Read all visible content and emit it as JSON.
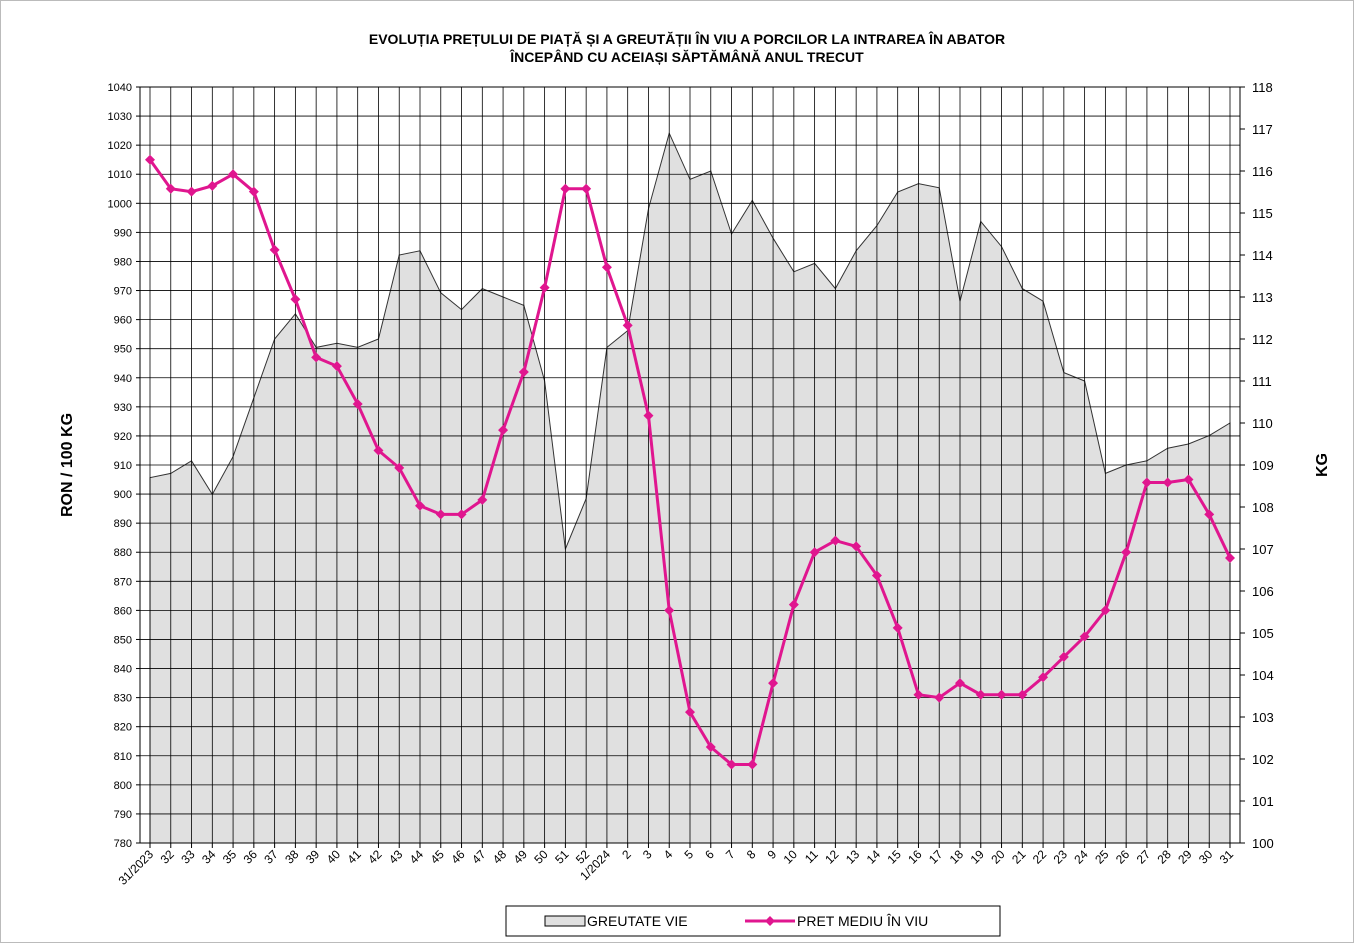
{
  "chart_data": {
    "type": "combo",
    "title": "EVOLUȚIA PREȚULUI DE PIAȚĂ ȘI A GREUTĂȚII  ÎN VIU A PORCILOR LA INTRAREA  ÎN ABATOR",
    "subtitle": "ÎNCEPÂND  CU ACEIAȘI SĂPTĂMÂNĂ ANUL TRECUT",
    "y_label": "RON / 100 KG",
    "y2_label": "KG",
    "categories": [
      "31/2023",
      "32",
      "33",
      "34",
      "35",
      "36",
      "37",
      "38",
      "39",
      "40",
      "41",
      "42",
      "43",
      "44",
      "45",
      "46",
      "47",
      "48",
      "49",
      "50",
      "51",
      "52",
      "1/2024",
      "2",
      "3",
      "4",
      "5",
      "6",
      "7",
      "8",
      "9",
      "10",
      "11",
      "12",
      "13",
      "14",
      "15",
      "16",
      "17",
      "18",
      "19",
      "20",
      "21",
      "22",
      "23",
      "24",
      "25",
      "26",
      "27",
      "28",
      "29",
      "30",
      "31"
    ],
    "series": [
      {
        "name": "GREUTATE VIE",
        "type": "area",
        "axis": "y2",
        "color": "#e0e0e0",
        "values": [
          108.7,
          108.8,
          109.1,
          108.3,
          109.2,
          110.6,
          112.0,
          112.6,
          111.8,
          111.9,
          111.8,
          112.0,
          114.0,
          114.1,
          113.1,
          112.7,
          113.2,
          113.0,
          112.8,
          111.0,
          107.0,
          108.2,
          111.8,
          112.2,
          115.1,
          116.9,
          115.8,
          116.0,
          114.5,
          115.3,
          114.4,
          113.6,
          113.8,
          113.2,
          114.1,
          114.7,
          115.5,
          115.7,
          115.6,
          112.9,
          114.8,
          114.2,
          113.2,
          112.9,
          111.2,
          111.0,
          108.8,
          109.0,
          109.1,
          109.4,
          109.5,
          109.7,
          110.0
        ]
      },
      {
        "name": "PRET MEDIU ÎN VIU",
        "type": "line",
        "color": "#e0168f",
        "values": [
          1015,
          1005,
          1004,
          1006,
          1010,
          1004,
          984,
          967,
          947,
          944,
          931,
          915,
          909,
          896,
          893,
          893,
          898,
          922,
          942,
          971,
          1005,
          1005,
          978,
          958,
          927,
          860,
          825,
          813,
          807,
          807,
          835,
          862,
          880,
          884,
          882,
          872,
          854,
          831,
          830,
          835,
          831,
          831,
          831,
          837,
          844,
          851,
          860,
          880,
          904,
          904,
          905,
          893,
          878
        ]
      }
    ],
    "ylim": [
      780,
      1040
    ],
    "yticks": [
      780,
      790,
      800,
      810,
      820,
      830,
      840,
      850,
      860,
      870,
      880,
      890,
      900,
      910,
      920,
      930,
      940,
      950,
      960,
      970,
      980,
      990,
      1000,
      1010,
      1020,
      1030,
      1040
    ],
    "y2lim": [
      100,
      118
    ],
    "y2ticks": [
      100,
      101,
      102,
      103,
      104,
      105,
      106,
      107,
      108,
      109,
      110,
      111,
      112,
      113,
      114,
      115,
      116,
      117,
      118
    ],
    "grid": true
  }
}
